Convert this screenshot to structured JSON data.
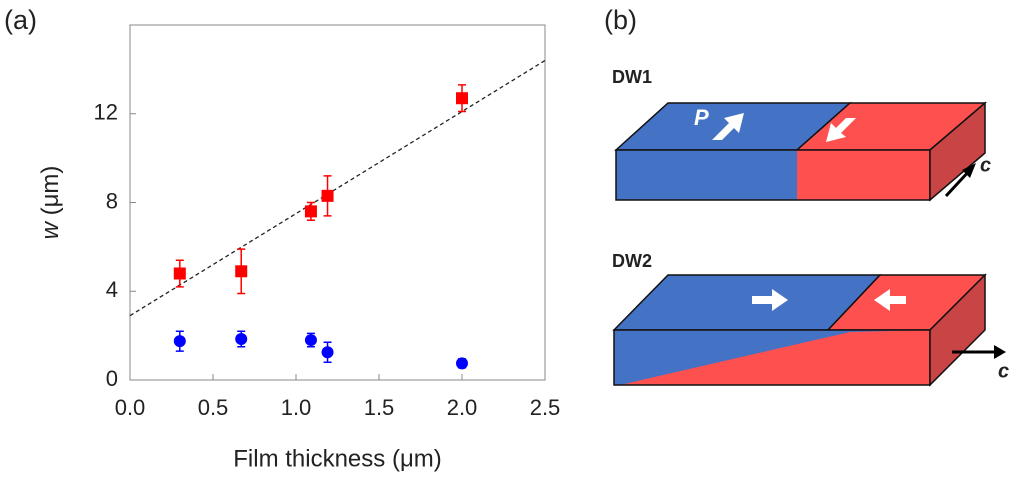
{
  "chart_data": {
    "type": "scatter",
    "panel_label": "(a)",
    "x_label": "Film thickness (μm)",
    "y_label": {
      "variable": "w",
      "unit": "(μm)"
    },
    "xlim": [
      0,
      2.5
    ],
    "ylim": [
      0,
      16
    ],
    "xticks": [
      {
        "value": 0,
        "label": "0.0"
      },
      0.5,
      {
        "value": 1,
        "label": "1.0"
      },
      1.5,
      {
        "value": 2,
        "label": "2.0"
      },
      2.5
    ],
    "yticks": [
      0,
      4,
      8,
      12
    ],
    "x": [
      0.3,
      0.67,
      1.09,
      1.19,
      2.0
    ],
    "series": [
      {
        "color": "#ff0000",
        "marker": "square",
        "values": [
          4.8,
          4.9,
          7.6,
          8.3,
          12.7
        ],
        "errors": [
          0.6,
          1.0,
          0.4,
          0.9,
          0.6
        ]
      },
      {
        "color": "#0000ff",
        "marker": "circle",
        "values": [
          1.75,
          1.85,
          1.8,
          1.25,
          0.75
        ],
        "errors": [
          0.45,
          0.35,
          0.3,
          0.45,
          0.2
        ]
      }
    ],
    "fit_line": {
      "x": [
        0,
        2.5
      ],
      "y": [
        2.9,
        14.4
      ]
    }
  },
  "diagram": {
    "panel_label": "(b)",
    "top_label": "DW1",
    "bottom_label": "DW2",
    "polarization_label": "P",
    "axis_label": "c"
  }
}
